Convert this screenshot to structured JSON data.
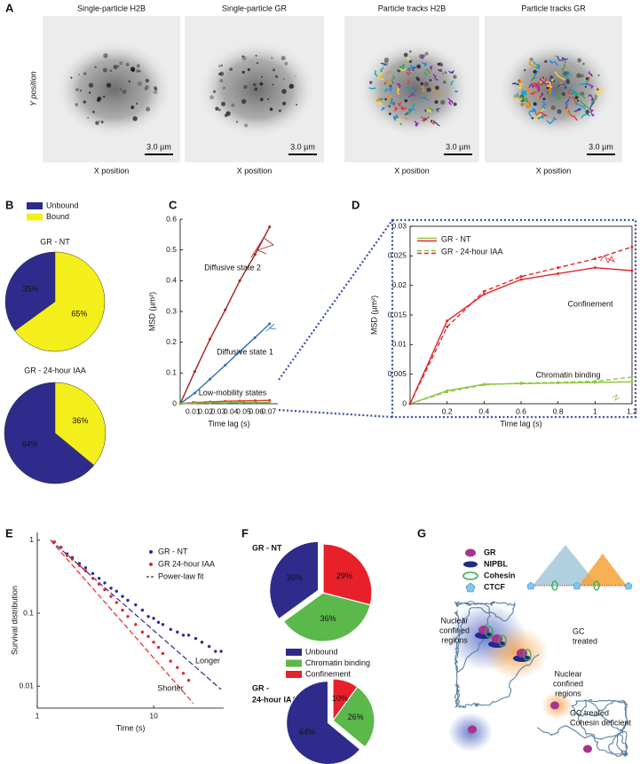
{
  "panel_letters": [
    "A",
    "B",
    "C",
    "D",
    "E",
    "F",
    "G"
  ],
  "panel_a": {
    "images": [
      {
        "title": "Single-particle H2B",
        "scale_bar": "3.0 µm"
      },
      {
        "title": "Single-particle GR",
        "scale_bar": "3.0 µm"
      },
      {
        "title": "Particle tracks H2B",
        "scale_bar": "3.0 µm"
      },
      {
        "title": "Particle tracks GR",
        "scale_bar": "3.0 µm"
      }
    ],
    "x_label": "X position",
    "y_label": "Y position"
  },
  "chart_data": [
    {
      "type": "pie",
      "title": "GR - NT",
      "categories": [
        "Unbound",
        "Bound"
      ],
      "colors": [
        "#2e2b8d",
        "#f4ee1a"
      ],
      "values": [
        35,
        65
      ],
      "value_labels": [
        "35%",
        "65%"
      ]
    },
    {
      "type": "pie",
      "title": "GR - 24-hour IAA",
      "colors": [
        "#2e2b8d",
        "#f4ee1a"
      ],
      "values": [
        64,
        36
      ],
      "value_labels": [
        "64%",
        "36%"
      ]
    },
    {
      "type": "line",
      "x_label": "Time lag (s)",
      "y_label": "MSD (µm²)",
      "x": [
        0,
        0.0115,
        0.0235,
        0.0355,
        0.047,
        0.059,
        0.0705
      ],
      "xlim": [
        0,
        0.077
      ],
      "ylim": [
        0,
        0.6
      ],
      "xticks": [
        0.01,
        0.02,
        0.03,
        0.04,
        0.05,
        0.06,
        0.07
      ],
      "yticks": [
        0,
        0.1,
        0.2,
        0.3,
        0.4,
        0.5,
        0.6
      ],
      "box": false,
      "series": [
        {
          "name": "Diffusive state 2",
          "color": "#a5201f",
          "values": [
            0,
            0.105,
            0.21,
            0.305,
            0.4,
            0.485,
            0.575
          ]
        },
        {
          "name": "Diffusive state 1",
          "color": "#2f6db5",
          "values": [
            0,
            0.035,
            0.08,
            0.125,
            0.17,
            0.215,
            0.26
          ]
        },
        {
          "name": "Low-mobility states",
          "color": "#e03a2a",
          "values": [
            0,
            0.004,
            0.006,
            0.008,
            0.009,
            0.01,
            0.011
          ]
        },
        {
          "color": "#79b843",
          "values": [
            0,
            0.002,
            0.003,
            0.003,
            0.004,
            0.004,
            0.004
          ]
        }
      ]
    },
    {
      "type": "line",
      "x_label": "Time lag (s)",
      "y_label": "MSD (µm²)",
      "x": [
        0,
        0.2,
        0.4,
        0.6,
        0.8,
        1,
        1.2
      ],
      "xlim": [
        0,
        1.2
      ],
      "ylim": [
        0,
        0.03
      ],
      "xticks": [
        0.2,
        0.4,
        0.6,
        0.8,
        1,
        1.2
      ],
      "yticks": [
        0,
        0.005,
        0.01,
        0.015,
        0.02,
        0.025,
        0.03
      ],
      "box": true,
      "annotations": [
        "Confinement",
        "Chromatin binding"
      ],
      "series": [
        {
          "name": "GR - NT",
          "color": "#8dc63f",
          "dash": false,
          "values": [
            0,
            0.0022,
            0.0033,
            0.0034,
            0.0035,
            0.0036,
            0.0037
          ]
        },
        {
          "color": "#e5252a",
          "dash": false,
          "values": [
            0,
            0.014,
            0.0185,
            0.021,
            0.022,
            0.023,
            0.0225
          ]
        },
        {
          "name": "GR - 24-hour IAA",
          "color": "#8dc63f",
          "dash": true,
          "values": [
            0,
            0.002,
            0.0032,
            0.0035,
            0.0036,
            0.0038,
            0.0045
          ]
        },
        {
          "color": "#e5252a",
          "dash": true,
          "values": [
            0,
            0.013,
            0.019,
            0.0215,
            0.023,
            0.0245,
            0.0265
          ]
        }
      ]
    },
    {
      "type": "scatter",
      "x_label": "Time (s)",
      "y_label": "Survival distribution",
      "log_x": true,
      "log_y": true,
      "box": false,
      "xlim": [
        1,
        40
      ],
      "ylim": [
        0.005,
        1.28
      ],
      "xticks": [
        1,
        10
      ],
      "yticks": [
        0.01,
        0.1,
        1
      ],
      "annotations": [
        "Longer",
        "Shorter"
      ],
      "fit_label": "Power-law fit",
      "series": [
        {
          "name": "GR - NT",
          "color": "#2e2b8d",
          "x": [
            1.4,
            1.6,
            1.8,
            2,
            2.3,
            2.6,
            3,
            3.4,
            3.8,
            4.3,
            4.8,
            5.4,
            6,
            7,
            8,
            9,
            10,
            11,
            12,
            14,
            16,
            18,
            20,
            23,
            26,
            30,
            34,
            38
          ],
          "values": [
            0.95,
            0.8,
            0.65,
            0.58,
            0.48,
            0.42,
            0.35,
            0.3,
            0.26,
            0.22,
            0.2,
            0.17,
            0.15,
            0.13,
            0.11,
            0.09,
            0.085,
            0.075,
            0.07,
            0.06,
            0.055,
            0.05,
            0.05,
            0.045,
            0.04,
            0.035,
            0.03,
            0.03
          ]
        },
        {
          "name": "GR 24-hour IAA",
          "color": "#e5252a",
          "x": [
            1.4,
            1.6,
            1.8,
            2,
            2.3,
            2.6,
            3,
            3.4,
            3.8,
            4.3,
            4.8,
            5.4,
            6,
            7,
            8,
            9,
            10,
            11,
            12,
            14,
            16,
            18,
            20
          ],
          "values": [
            0.95,
            0.8,
            0.62,
            0.55,
            0.45,
            0.38,
            0.3,
            0.25,
            0.21,
            0.17,
            0.14,
            0.11,
            0.09,
            0.07,
            0.055,
            0.048,
            0.04,
            0.034,
            0.028,
            0.022,
            0.018,
            0.015,
            0.012
          ]
        }
      ],
      "fits": [
        {
          "color": "#2e2b8d",
          "x": [
            1.3,
            38
          ],
          "values": [
            1,
            0.009
          ]
        },
        {
          "color": "#e5252a",
          "x": [
            1.3,
            22
          ],
          "values": [
            1,
            0.0058
          ]
        }
      ]
    },
    {
      "type": "pie",
      "title": "GR - NT",
      "exploded": true,
      "categories": [
        "Unbound",
        "Chromatin binding",
        "Confinement"
      ],
      "colors": [
        "#2e2b8d",
        "#5bb84a",
        "#e8202a"
      ],
      "values": [
        35,
        36,
        29
      ],
      "value_labels": [
        "35%",
        "36%",
        "29%"
      ]
    },
    {
      "type": "pie",
      "title_lines": [
        "GR -",
        "24-hour IAA"
      ],
      "exploded": true,
      "colors": [
        "#2e2b8d",
        "#5bb84a",
        "#e8202a"
      ],
      "values": [
        64,
        26,
        10
      ],
      "value_labels": [
        "64%",
        "26%",
        "10%"
      ]
    }
  ],
  "panel_g": {
    "legend": [
      "GR",
      "NIPBL",
      "Cohesin",
      "CTCF"
    ],
    "labels": [
      {
        "lines": [
          "Nuclear",
          "confined",
          "regions"
        ]
      },
      {
        "lines": [
          "GC",
          "treated"
        ]
      },
      {
        "lines": [
          "Nuclear",
          "confined",
          "regions"
        ]
      },
      {
        "lines": [
          "GC treated",
          "Cohesin deficient"
        ]
      }
    ]
  }
}
